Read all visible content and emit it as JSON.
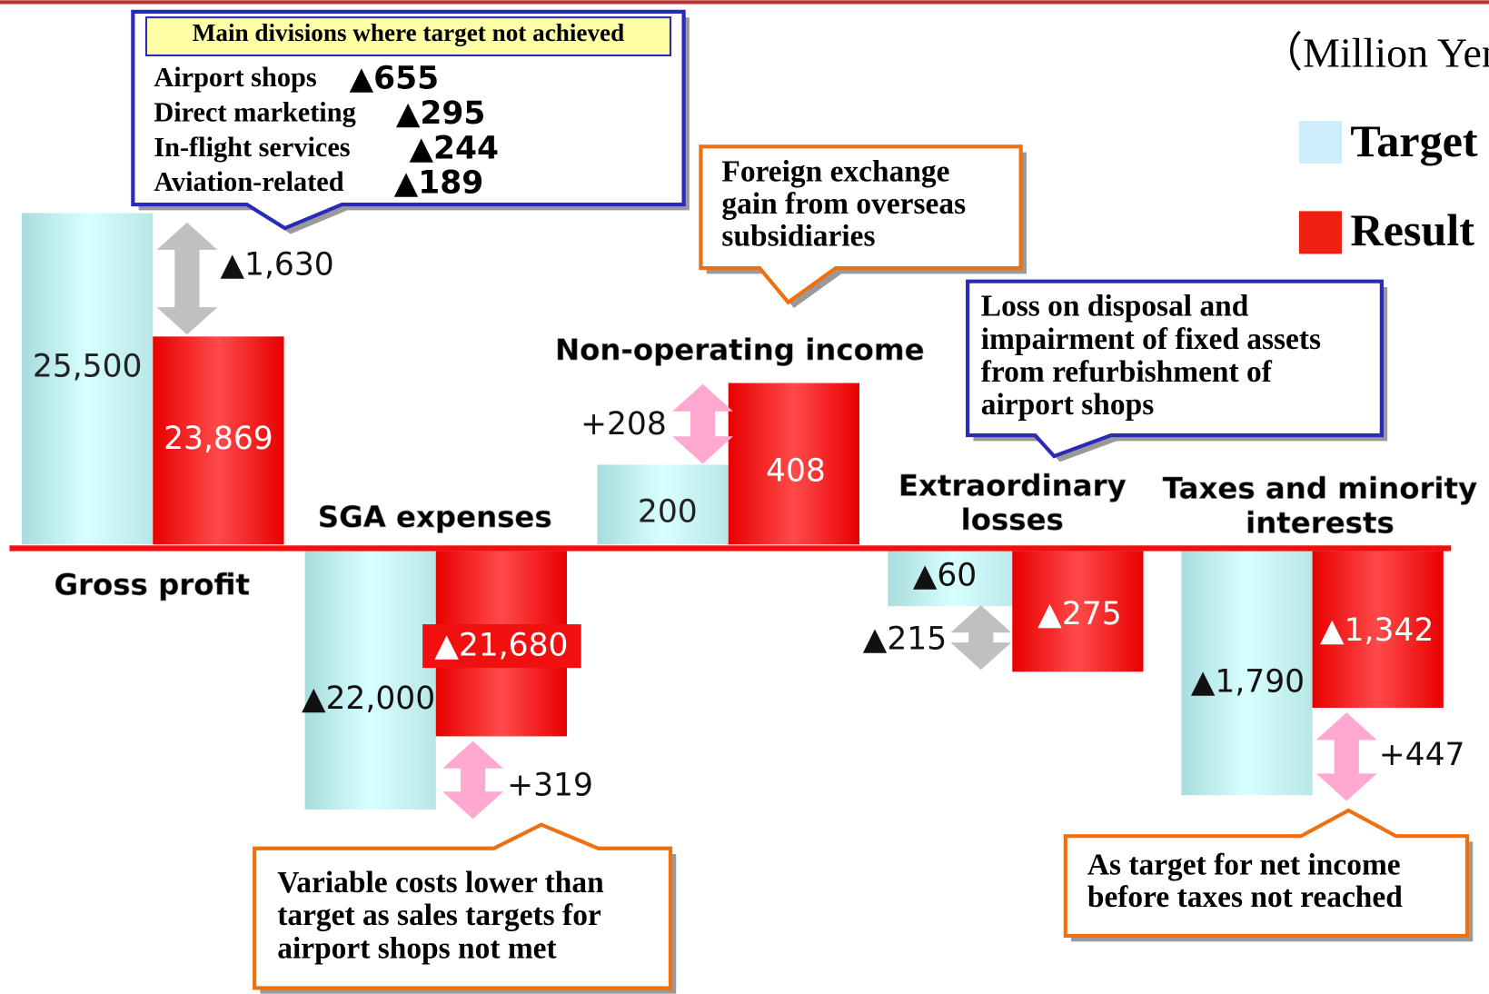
{
  "unit": "（Million Yen）",
  "legend": [
    "Target",
    "Result"
  ],
  "groups": [
    {
      "title": [
        "Gross profit"
      ],
      "target": "25,500",
      "result": "23,869",
      "difference": "▲1,630"
    },
    {
      "title": [
        "SGA expenses"
      ],
      "target": "▲22,000",
      "result": "▲21,680",
      "difference": "+319"
    },
    {
      "title": [
        "Non-operating income"
      ],
      "target": "200",
      "result": "408",
      "difference": "+208"
    },
    {
      "title": [
        "Extraordinary",
        "losses"
      ],
      "target": "▲60",
      "result": "▲275",
      "difference": "▲215"
    },
    {
      "title": [
        "Taxes and minority",
        "interests"
      ],
      "target": "▲1,790",
      "result": "▲1,342",
      "difference": "+447"
    }
  ],
  "divisions": {
    "title": "Main divisions where target not achieved",
    "items": [
      {
        "name": "Airport shops",
        "value": "▲655"
      },
      {
        "name": "Direct marketing",
        "value": "▲295"
      },
      {
        "name": "In-flight services",
        "value": "▲244"
      },
      {
        "name": "Aviation-related",
        "value": "▲189"
      }
    ]
  },
  "callouts": [
    [
      "Foreign exchange",
      "gain from overseas",
      "subsidiaries"
    ],
    [
      "Loss on disposal and",
      "impairment of fixed assets",
      "from refurbishment of",
      "airport shops"
    ],
    [
      "Variable costs lower than",
      "target as sales targets for",
      "airport shops not met"
    ],
    [
      "As target for net income",
      "before taxes not reached"
    ]
  ]
}
